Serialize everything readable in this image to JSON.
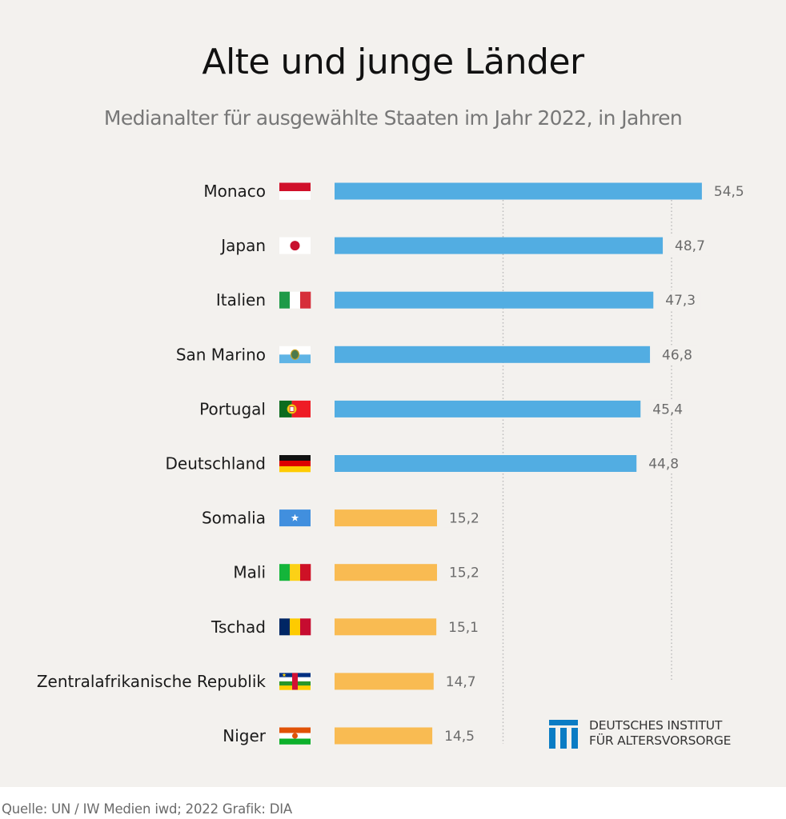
{
  "title": "Alte und junge Länder",
  "subtitle": "Medianalter für ausgewählte Staaten im Jahr 2022, in Jahren",
  "source": "Quelle: UN / IW Medien iwd; 2022  Grafik: DIA",
  "logo": {
    "icon": "dia-logo-icon",
    "line1": "DEUTSCHES INSTITUT",
    "line2": "FÜR ALTERSVORSORGE",
    "color": "#0a7cc4"
  },
  "colors": {
    "old": "#52ade2",
    "young": "#f9bb52",
    "background": "#f3f1ee",
    "gridline": "#b8b8b8"
  },
  "chart_data": {
    "type": "bar",
    "orientation": "horizontal",
    "title": "Alte und junge Länder",
    "subtitle": "Medianalter für ausgewählte Staaten im Jahr 2022, in Jahren",
    "xlabel": "",
    "ylabel": "",
    "xlim": [
      0,
      55
    ],
    "gridlines": [
      25,
      50
    ],
    "grid": true,
    "legend": "none",
    "categories": [
      "Monaco",
      "Japan",
      "Italien",
      "San Marino",
      "Portugal",
      "Deutschland",
      "Somalia",
      "Mali",
      "Tschad",
      "Zentralafrikanische Republik",
      "Niger"
    ],
    "values": [
      54.5,
      48.7,
      47.3,
      46.8,
      45.4,
      44.8,
      15.2,
      15.2,
      15.1,
      14.7,
      14.5
    ],
    "value_labels": [
      "54,5",
      "48,7",
      "47,3",
      "46,8",
      "45,4",
      "44,8",
      "15,2",
      "15,2",
      "15,1",
      "14,7",
      "14,5"
    ],
    "groups": [
      "old",
      "old",
      "old",
      "old",
      "old",
      "old",
      "young",
      "young",
      "young",
      "young",
      "young"
    ],
    "flags": [
      "monaco-flag-icon",
      "japan-flag-icon",
      "italy-flag-icon",
      "san-marino-flag-icon",
      "portugal-flag-icon",
      "germany-flag-icon",
      "somalia-flag-icon",
      "mali-flag-icon",
      "chad-flag-icon",
      "central-african-republic-flag-icon",
      "niger-flag-icon"
    ]
  }
}
